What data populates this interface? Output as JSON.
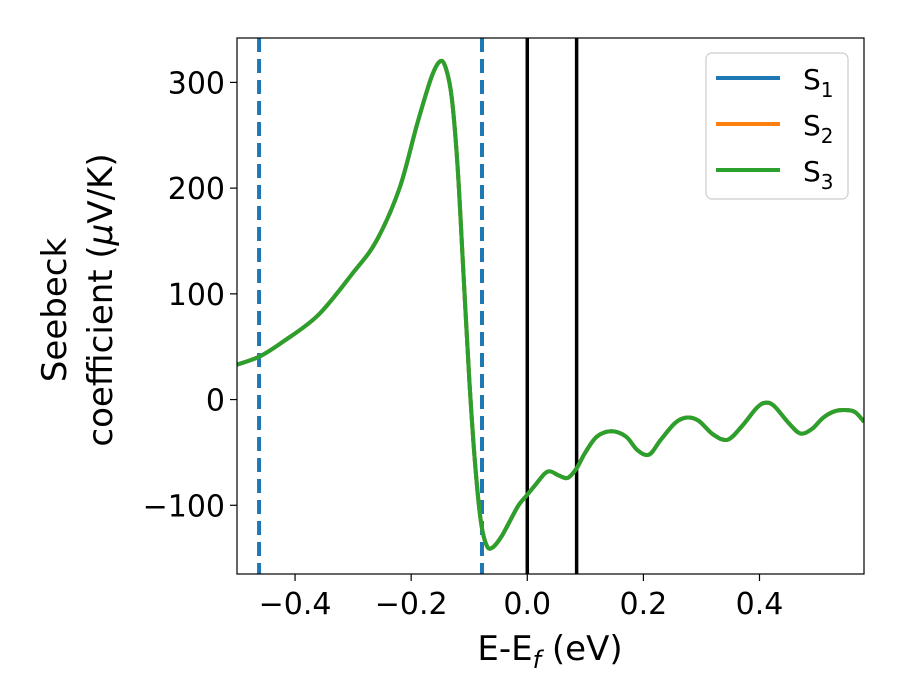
{
  "chart_data": {
    "type": "line",
    "xlabel": {
      "main": "E-E",
      "sub": "f",
      "tail": " (eV)"
    },
    "ylabel": {
      "line1": "Seebeck",
      "line2": "coefficient  (",
      "mu": "μ",
      "line2_tail": "V/K)"
    },
    "xlim": [
      -0.5,
      0.58
    ],
    "ylim": [
      -165,
      342
    ],
    "x_ticks": [
      -0.4,
      -0.2,
      0.0,
      0.2,
      0.4
    ],
    "x_tick_labels": [
      "−0.4",
      "−0.2",
      "0.0",
      "0.2",
      "0.4"
    ],
    "y_ticks": [
      -100,
      0,
      100,
      200,
      300
    ],
    "y_tick_labels": [
      "−100",
      "0",
      "100",
      "200",
      "300"
    ],
    "grid": false,
    "legend_position": "top-right",
    "series": [
      {
        "name": "S",
        "sub": "1",
        "color": "#1f77b4"
      },
      {
        "name": "S",
        "sub": "2",
        "color": "#ff7f0e"
      },
      {
        "name": "S",
        "sub": "3",
        "color": "#2ca02c"
      }
    ],
    "curve_points": [
      [
        -0.5,
        33
      ],
      [
        -0.46,
        41
      ],
      [
        -0.42,
        55
      ],
      [
        -0.36,
        80
      ],
      [
        -0.3,
        120
      ],
      [
        -0.26,
        150
      ],
      [
        -0.22,
        200
      ],
      [
        -0.19,
        260
      ],
      [
        -0.165,
        305
      ],
      [
        -0.15,
        320
      ],
      [
        -0.14,
        313
      ],
      [
        -0.13,
        285
      ],
      [
        -0.12,
        220
      ],
      [
        -0.11,
        120
      ],
      [
        -0.1,
        20
      ],
      [
        -0.09,
        -60
      ],
      [
        -0.08,
        -115
      ],
      [
        -0.07,
        -138
      ],
      [
        -0.06,
        -140
      ],
      [
        -0.045,
        -130
      ],
      [
        -0.03,
        -115
      ],
      [
        -0.015,
        -100
      ],
      [
        0.0,
        -90
      ],
      [
        0.015,
        -80
      ],
      [
        0.03,
        -70
      ],
      [
        0.04,
        -68
      ],
      [
        0.055,
        -72
      ],
      [
        0.07,
        -74
      ],
      [
        0.085,
        -65
      ],
      [
        0.1,
        -50
      ],
      [
        0.12,
        -35
      ],
      [
        0.145,
        -30
      ],
      [
        0.17,
        -35
      ],
      [
        0.19,
        -48
      ],
      [
        0.21,
        -52
      ],
      [
        0.23,
        -38
      ],
      [
        0.255,
        -22
      ],
      [
        0.275,
        -17
      ],
      [
        0.295,
        -20
      ],
      [
        0.32,
        -33
      ],
      [
        0.345,
        -38
      ],
      [
        0.37,
        -25
      ],
      [
        0.395,
        -8
      ],
      [
        0.41,
        -3
      ],
      [
        0.425,
        -6
      ],
      [
        0.45,
        -22
      ],
      [
        0.47,
        -32
      ],
      [
        0.49,
        -28
      ],
      [
        0.51,
        -17
      ],
      [
        0.53,
        -11
      ],
      [
        0.55,
        -10
      ],
      [
        0.565,
        -12
      ],
      [
        0.58,
        -21
      ]
    ],
    "vlines_dashed": [
      -0.462,
      -0.078
    ],
    "vlines_solid": [
      0.0,
      0.085
    ],
    "vline_dashed_color": "#1f77b4",
    "vline_solid_color": "#000000"
  }
}
